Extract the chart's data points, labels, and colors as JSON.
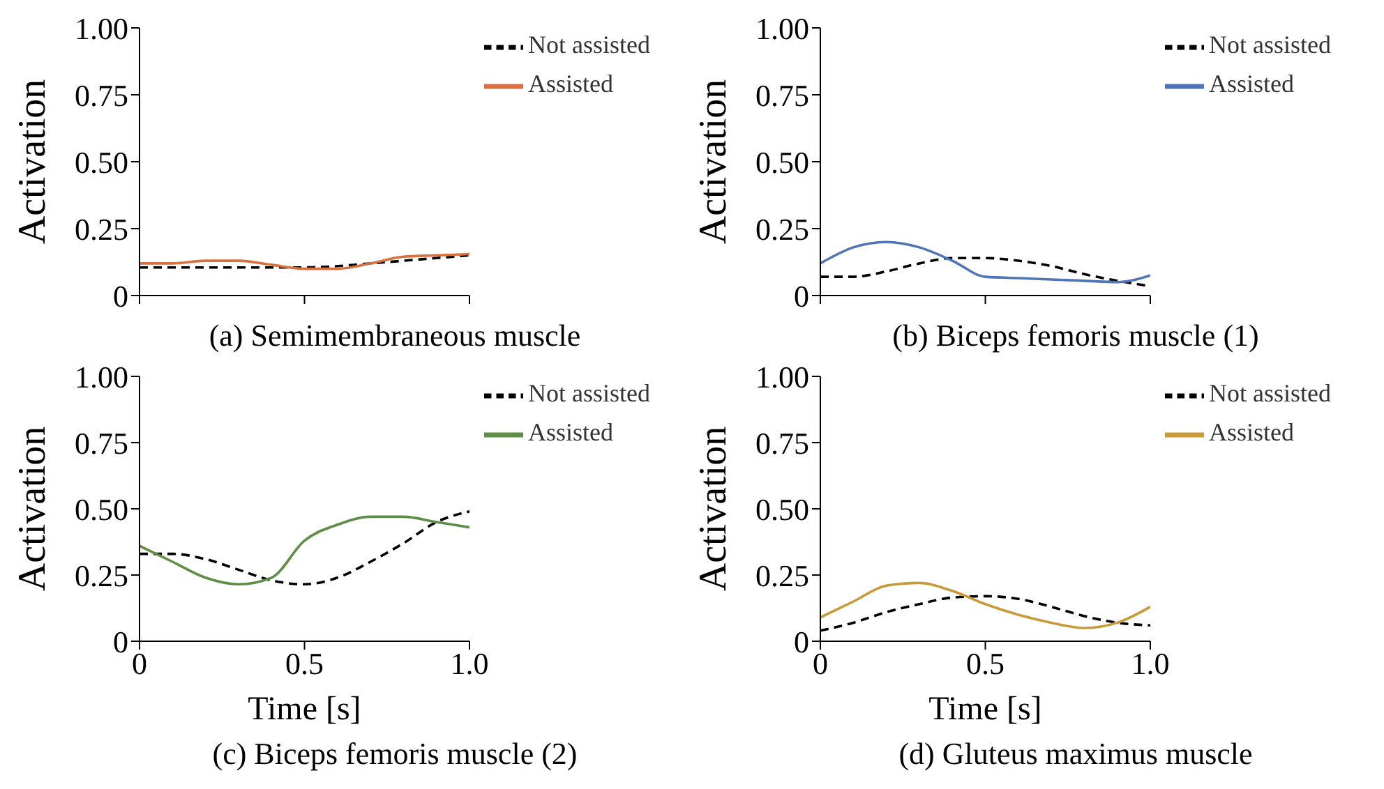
{
  "chart_data": [
    {
      "type": "line",
      "title": "(a) Semimembraneous muscle",
      "ylabel": "Activation",
      "x": [
        0,
        0.1,
        0.2,
        0.3,
        0.4,
        0.5,
        0.6,
        0.7,
        0.8,
        0.9,
        1
      ],
      "xlim": [
        0,
        1
      ],
      "xticks": [
        {
          "value": 0,
          "label": null
        },
        {
          "value": 0.5,
          "label": null
        },
        {
          "value": 1,
          "label": null
        }
      ],
      "ylim": [
        0,
        1
      ],
      "yticks": [
        {
          "value": 0,
          "label": "0"
        },
        {
          "value": 0.25,
          "label": "0.25"
        },
        {
          "value": 0.5,
          "label": "0.50"
        },
        {
          "value": 0.75,
          "label": "0.75"
        },
        {
          "value": 1,
          "label": "1.00"
        }
      ],
      "tick_labels": "y",
      "legend": "top right",
      "grid": false,
      "marker": "none",
      "series": [
        {
          "name": "Not assisted",
          "color": "#000000",
          "line_style": "dashed",
          "values": [
            0.105,
            0.105,
            0.105,
            0.105,
            0.105,
            0.105,
            0.11,
            0.12,
            0.13,
            0.14,
            0.15
          ]
        },
        {
          "name": "Assisted",
          "color": "#d9703f",
          "line_style": "solid",
          "values": [
            0.12,
            0.12,
            0.13,
            0.13,
            0.115,
            0.1,
            0.1,
            0.12,
            0.145,
            0.15,
            0.155
          ]
        }
      ]
    },
    {
      "type": "line",
      "title": "(b) Biceps femoris muscle (1)",
      "ylabel": "Activation",
      "x": [
        0,
        0.1,
        0.2,
        0.3,
        0.4,
        0.5,
        0.6,
        0.7,
        0.8,
        0.9,
        1
      ],
      "xlim": [
        0,
        1
      ],
      "xticks": [
        {
          "value": 0,
          "label": null
        },
        {
          "value": 0.5,
          "label": null
        },
        {
          "value": 1,
          "label": null
        }
      ],
      "ylim": [
        0,
        1
      ],
      "yticks": [
        {
          "value": 0,
          "label": "0"
        },
        {
          "value": 0.25,
          "label": "0.25"
        },
        {
          "value": 0.5,
          "label": "0.50"
        },
        {
          "value": 0.75,
          "label": "0.75"
        },
        {
          "value": 1,
          "label": "1.00"
        }
      ],
      "tick_labels": "y",
      "legend": "top right",
      "grid": false,
      "marker": "none",
      "series": [
        {
          "name": "Not assisted",
          "color": "#000000",
          "line_style": "dashed",
          "values": [
            0.07,
            0.07,
            0.09,
            0.12,
            0.14,
            0.14,
            0.13,
            0.11,
            0.08,
            0.055,
            0.035
          ]
        },
        {
          "name": "Assisted",
          "color": "#4f74b8",
          "line_style": "solid",
          "values": [
            0.12,
            0.18,
            0.2,
            0.18,
            0.13,
            0.07,
            0.065,
            0.06,
            0.055,
            0.05,
            0.075
          ]
        }
      ]
    },
    {
      "type": "line",
      "title": "(c) Biceps femoris muscle (2)",
      "xlabel": "Time [s]",
      "ylabel": "Activation",
      "x": [
        0,
        0.1,
        0.2,
        0.3,
        0.4,
        0.5,
        0.6,
        0.7,
        0.8,
        0.9,
        1
      ],
      "xlim": [
        0,
        1
      ],
      "xticks": [
        {
          "value": 0,
          "label": "0"
        },
        {
          "value": 0.5,
          "label": "0.5"
        },
        {
          "value": 1,
          "label": "1.0"
        }
      ],
      "ylim": [
        0,
        1
      ],
      "yticks": [
        {
          "value": 0,
          "label": "0"
        },
        {
          "value": 0.25,
          "label": "0.25"
        },
        {
          "value": 0.5,
          "label": "0.50"
        },
        {
          "value": 0.75,
          "label": "0.75"
        },
        {
          "value": 1,
          "label": "1.00"
        }
      ],
      "legend": "top right",
      "grid": false,
      "marker": "none",
      "series": [
        {
          "name": "Not assisted",
          "color": "#000000",
          "line_style": "dashed",
          "values": [
            0.33,
            0.33,
            0.31,
            0.27,
            0.23,
            0.215,
            0.24,
            0.3,
            0.37,
            0.45,
            0.49
          ]
        },
        {
          "name": "Assisted",
          "color": "#5e8e45",
          "line_style": "solid",
          "values": [
            0.36,
            0.3,
            0.24,
            0.215,
            0.24,
            0.38,
            0.44,
            0.47,
            0.47,
            0.45,
            0.43
          ]
        }
      ]
    },
    {
      "type": "line",
      "title": "(d) Gluteus maximus muscle",
      "xlabel": "Time [s]",
      "ylabel": "Activation",
      "x": [
        0,
        0.1,
        0.2,
        0.3,
        0.4,
        0.5,
        0.6,
        0.7,
        0.8,
        0.9,
        1
      ],
      "xlim": [
        0,
        1
      ],
      "xticks": [
        {
          "value": 0,
          "label": "0"
        },
        {
          "value": 0.5,
          "label": "0.5"
        },
        {
          "value": 1,
          "label": "1.0"
        }
      ],
      "ylim": [
        0,
        1
      ],
      "yticks": [
        {
          "value": 0,
          "label": "0"
        },
        {
          "value": 0.25,
          "label": "0.25"
        },
        {
          "value": 0.5,
          "label": "0.50"
        },
        {
          "value": 0.75,
          "label": "0.75"
        },
        {
          "value": 1,
          "label": "1.00"
        }
      ],
      "legend": "top right",
      "grid": false,
      "marker": "none",
      "series": [
        {
          "name": "Not assisted",
          "color": "#000000",
          "line_style": "dashed",
          "values": [
            0.04,
            0.07,
            0.11,
            0.14,
            0.165,
            0.17,
            0.16,
            0.13,
            0.095,
            0.07,
            0.06
          ]
        },
        {
          "name": "Assisted",
          "color": "#c99a3a",
          "line_style": "solid",
          "values": [
            0.09,
            0.15,
            0.21,
            0.22,
            0.19,
            0.14,
            0.1,
            0.07,
            0.05,
            0.07,
            0.13
          ]
        }
      ]
    }
  ]
}
